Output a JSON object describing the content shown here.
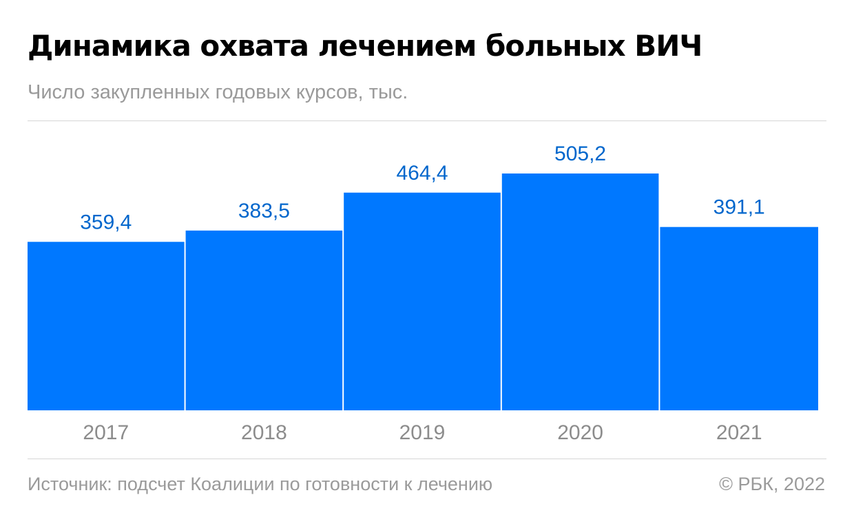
{
  "header": {
    "title": "Динамика охвата лечением больных ВИЧ",
    "subtitle": "Число закупленных годовых курсов, тыс."
  },
  "footer": {
    "source": "Источник: подсчет Коалиции по готовности к лечению",
    "copyright": "© РБК, 2022"
  },
  "colors": {
    "bar": "#0078ff",
    "value_label": "#0066cc",
    "tick_label": "#8c8c8c",
    "rule": "#d6d6d6"
  },
  "chart_data": {
    "type": "bar",
    "title": "Динамика охвата лечением больных ВИЧ",
    "subtitle": "Число закупленных годовых курсов, тыс.",
    "categories": [
      "2017",
      "2018",
      "2019",
      "2020",
      "2021"
    ],
    "values": [
      359.4,
      383.5,
      464.4,
      505.2,
      391.1
    ],
    "value_labels": [
      "359,4",
      "383,5",
      "464,4",
      "505,2",
      "391,1"
    ],
    "xlabel": "",
    "ylabel": "",
    "ylim": [
      0,
      505.2
    ],
    "grid": false,
    "legend": "none"
  }
}
